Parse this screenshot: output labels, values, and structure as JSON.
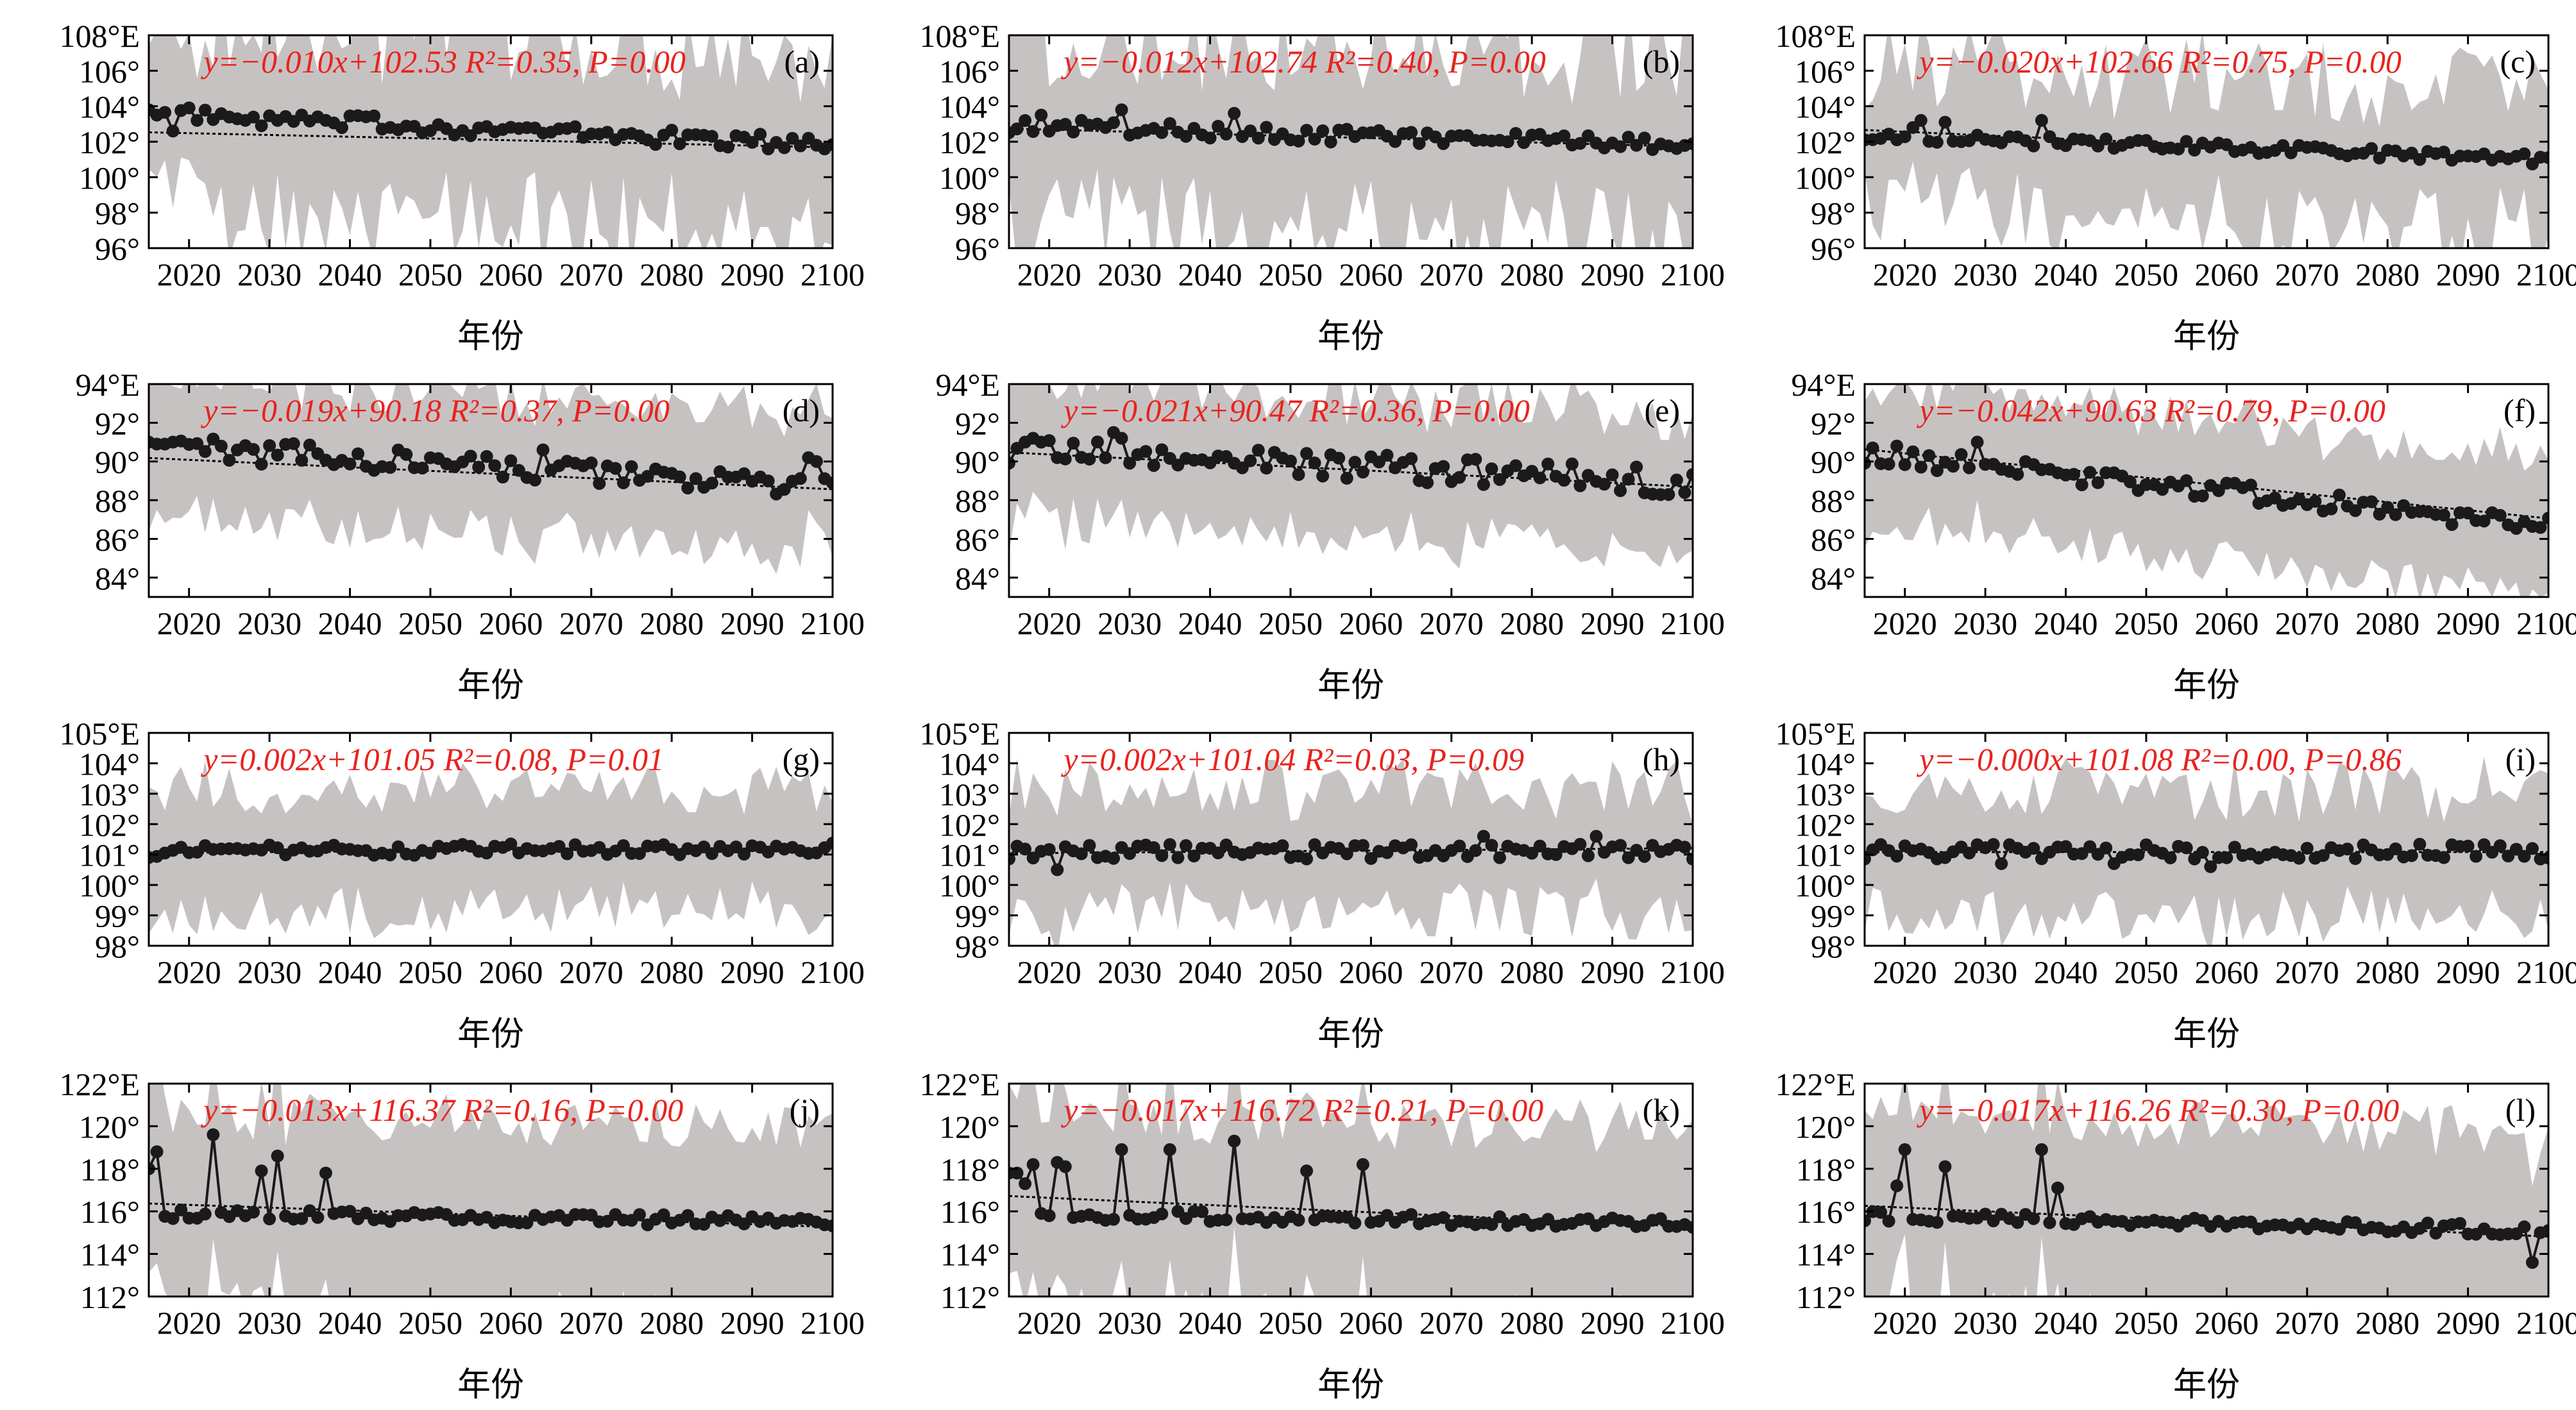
{
  "chart_data": [
    {
      "id": "a",
      "type": "line",
      "panel_label": "(a)",
      "equation": "y=−0.010x+102.53  R²=0.35, P=0.00",
      "xlabel": "年份",
      "ylabel": "",
      "xlim": [
        2015,
        2100
      ],
      "ylim": [
        96,
        108
      ],
      "y_ticks": [
        96,
        98,
        100,
        102,
        104,
        106,
        108
      ],
      "y_tick_labels": [
        "96°",
        "98°",
        "100°",
        "102°",
        "104°",
        "106°",
        "108°E"
      ],
      "x_ticks": [
        2020,
        2030,
        2040,
        2050,
        2060,
        2070,
        2080,
        2090,
        2100
      ],
      "x_tick_labels": [
        "2020",
        "2030",
        "2040",
        "2050",
        "2060",
        "2070",
        "2080",
        "2090",
        "2100"
      ],
      "trend": {
        "slope": -0.01,
        "intercept": 102.53
      },
      "year_start": 2015,
      "year_end": 2100,
      "series": {
        "mean": {
          "start": 103.6,
          "end": 101.8,
          "noise": 0.45
        },
        "band": {
          "width": 3.5,
          "noise": 3.0
        }
      },
      "spikes": [
        [
          2015,
          103.8
        ],
        [
          2016,
          103.5
        ],
        [
          2018,
          102.6
        ],
        [
          2021,
          103.2
        ],
        [
          2027,
          103.2
        ],
        [
          2029,
          102.9
        ],
        [
          2031,
          103.2
        ],
        [
          2037,
          103.2
        ]
      ]
    },
    {
      "id": "b",
      "type": "line",
      "panel_label": "(b)",
      "equation": "y=−0.012x+102.74  R²=0.40, P=0.00",
      "xlabel": "年份",
      "ylabel": "",
      "xlim": [
        2015,
        2100
      ],
      "ylim": [
        96,
        108
      ],
      "y_ticks": [
        96,
        98,
        100,
        102,
        104,
        106,
        108
      ],
      "y_tick_labels": [
        "96°",
        "98°",
        "100°",
        "102°",
        "104°",
        "106°",
        "108°E"
      ],
      "x_ticks": [
        2020,
        2030,
        2040,
        2050,
        2060,
        2070,
        2080,
        2090,
        2100
      ],
      "x_tick_labels": [
        "2020",
        "2030",
        "2040",
        "2050",
        "2060",
        "2070",
        "2080",
        "2090",
        "2100"
      ],
      "trend": {
        "slope": -0.012,
        "intercept": 102.74
      },
      "year_start": 2015,
      "year_end": 2100,
      "series": {
        "mean": {
          "start": 102.9,
          "end": 101.8,
          "noise": 0.4
        },
        "band": {
          "width": 3.5,
          "noise": 3.0
        }
      },
      "spikes": [
        [
          2019,
          103.5
        ],
        [
          2024,
          103.2
        ],
        [
          2029,
          103.8
        ],
        [
          2043,
          103.6
        ],
        [
          2057,
          102.7
        ]
      ]
    },
    {
      "id": "c",
      "type": "line",
      "panel_label": "(c)",
      "equation": "y=−0.020x+102.66  R²=0.75, P=0.00",
      "xlabel": "年份",
      "ylabel": "",
      "xlim": [
        2015,
        2100
      ],
      "ylim": [
        96,
        108
      ],
      "y_ticks": [
        96,
        98,
        100,
        102,
        104,
        106,
        108
      ],
      "y_tick_labels": [
        "96°",
        "98°",
        "100°",
        "102°",
        "104°",
        "106°",
        "108°E"
      ],
      "x_ticks": [
        2020,
        2030,
        2040,
        2050,
        2060,
        2070,
        2080,
        2090,
        2100
      ],
      "x_tick_labels": [
        "2020",
        "2030",
        "2040",
        "2050",
        "2060",
        "2070",
        "2080",
        "2090",
        "2100"
      ],
      "trend": {
        "slope": -0.02,
        "intercept": 102.66
      },
      "year_start": 2015,
      "year_end": 2100,
      "series": {
        "mean": {
          "start": 102.4,
          "end": 101.0,
          "noise": 0.3
        },
        "band": {
          "width": 2.5,
          "noise": 2.5
        }
      },
      "spikes": [
        [
          2021,
          102.8
        ],
        [
          2022,
          103.2
        ],
        [
          2025,
          103.1
        ],
        [
          2037,
          103.2
        ]
      ]
    },
    {
      "id": "d",
      "type": "line",
      "panel_label": "(d)",
      "equation": "y=−0.019x+90.18  R²=0.37, P=0.00",
      "xlabel": "年份",
      "ylabel": "",
      "xlim": [
        2015,
        2100
      ],
      "ylim": [
        83,
        94
      ],
      "y_ticks": [
        84,
        86,
        88,
        90,
        92,
        94
      ],
      "y_tick_labels": [
        "84°",
        "86°",
        "88°",
        "90°",
        "92°",
        "94°E"
      ],
      "x_ticks": [
        2020,
        2030,
        2040,
        2050,
        2060,
        2070,
        2080,
        2090,
        2100
      ],
      "x_tick_labels": [
        "2020",
        "2030",
        "2040",
        "2050",
        "2060",
        "2070",
        "2080",
        "2090",
        "2100"
      ],
      "trend": {
        "slope": -0.019,
        "intercept": 90.18
      },
      "year_start": 2015,
      "year_end": 2100,
      "series": {
        "mean": {
          "start": 90.8,
          "end": 88.6,
          "noise": 0.6
        },
        "band": {
          "width": 3.0,
          "noise": 1.0
        }
      },
      "spikes": [
        [
          2015,
          91.0
        ],
        [
          2016,
          90.9
        ],
        [
          2017,
          90.9
        ],
        [
          2018,
          91.0
        ],
        [
          2064,
          90.6
        ],
        [
          2097,
          90.2
        ],
        [
          2098,
          90.0
        ]
      ]
    },
    {
      "id": "e",
      "type": "line",
      "panel_label": "(e)",
      "equation": "y=−0.021x+90.47  R²=0.36, P=0.00",
      "xlabel": "年份",
      "ylabel": "",
      "xlim": [
        2015,
        2100
      ],
      "ylim": [
        83,
        94
      ],
      "y_ticks": [
        84,
        86,
        88,
        90,
        92,
        94
      ],
      "y_tick_labels": [
        "84°",
        "86°",
        "88°",
        "90°",
        "92°",
        "94°E"
      ],
      "x_ticks": [
        2020,
        2030,
        2040,
        2050,
        2060,
        2070,
        2080,
        2090,
        2100
      ],
      "x_tick_labels": [
        "2020",
        "2030",
        "2040",
        "2050",
        "2060",
        "2070",
        "2080",
        "2090",
        "2100"
      ],
      "trend": {
        "slope": -0.021,
        "intercept": 90.47
      },
      "year_start": 2015,
      "year_end": 2100,
      "series": {
        "mean": {
          "start": 90.6,
          "end": 88.9,
          "noise": 0.7
        },
        "band": {
          "width": 3.0,
          "noise": 1.1
        }
      },
      "spikes": [
        [
          2017,
          91.0
        ],
        [
          2018,
          91.2
        ],
        [
          2019,
          91.0
        ],
        [
          2028,
          91.5
        ],
        [
          2029,
          91.2
        ]
      ]
    },
    {
      "id": "f",
      "type": "line",
      "panel_label": "(f)",
      "equation": "y=−0.042x+90.63  R²=0.79, P=0.00",
      "xlabel": "年份",
      "ylabel": "",
      "xlim": [
        2015,
        2100
      ],
      "ylim": [
        83,
        94
      ],
      "y_ticks": [
        84,
        86,
        88,
        90,
        92,
        94
      ],
      "y_tick_labels": [
        "84°",
        "86°",
        "88°",
        "90°",
        "92°",
        "94°E"
      ],
      "x_ticks": [
        2020,
        2030,
        2040,
        2050,
        2060,
        2070,
        2080,
        2090,
        2100
      ],
      "x_tick_labels": [
        "2020",
        "2030",
        "2040",
        "2050",
        "2060",
        "2070",
        "2080",
        "2090",
        "2100"
      ],
      "trend": {
        "slope": -0.042,
        "intercept": 90.63
      },
      "year_start": 2015,
      "year_end": 2100,
      "series": {
        "mean": {
          "start": 90.4,
          "end": 86.7,
          "noise": 0.5
        },
        "band": {
          "width": 3.0,
          "noise": 1.0
        }
      },
      "spikes": [
        [
          2016,
          90.7
        ],
        [
          2019,
          90.8
        ],
        [
          2029,
          91.0
        ]
      ]
    },
    {
      "id": "g",
      "type": "line",
      "panel_label": "(g)",
      "equation": "y=0.002x+101.05  R²=0.08, P=0.01",
      "xlabel": "年份",
      "ylabel": "",
      "xlim": [
        2015,
        2100
      ],
      "ylim": [
        98,
        105
      ],
      "y_ticks": [
        98,
        99,
        100,
        101,
        102,
        103,
        104,
        105
      ],
      "y_tick_labels": [
        "98°",
        "99°",
        "100°",
        "101°",
        "102°",
        "103°",
        "104°",
        "105°E"
      ],
      "x_ticks": [
        2020,
        2030,
        2040,
        2050,
        2060,
        2070,
        2080,
        2090,
        2100
      ],
      "x_tick_labels": [
        "2020",
        "2030",
        "2040",
        "2050",
        "2060",
        "2070",
        "2080",
        "2090",
        "2100"
      ],
      "trend": {
        "slope": 0.002,
        "intercept": 101.05
      },
      "year_start": 2015,
      "year_end": 2100,
      "series": {
        "mean": {
          "start": 101.1,
          "end": 101.2,
          "noise": 0.2
        },
        "band": {
          "width": 1.5,
          "noise": 0.8
        }
      },
      "spikes": []
    },
    {
      "id": "h",
      "type": "line",
      "panel_label": "(h)",
      "equation": "y=0.002x+101.04  R²=0.03, P=0.09",
      "xlabel": "年份",
      "ylabel": "",
      "xlim": [
        2015,
        2100
      ],
      "ylim": [
        98,
        105
      ],
      "y_ticks": [
        98,
        99,
        100,
        101,
        102,
        103,
        104,
        105
      ],
      "y_tick_labels": [
        "98°",
        "99°",
        "100°",
        "101°",
        "102°",
        "103°",
        "104°",
        "105°E"
      ],
      "x_ticks": [
        2020,
        2030,
        2040,
        2050,
        2060,
        2070,
        2080,
        2090,
        2100
      ],
      "x_tick_labels": [
        "2020",
        "2030",
        "2040",
        "2050",
        "2060",
        "2070",
        "2080",
        "2090",
        "2100"
      ],
      "trend": {
        "slope": 0.002,
        "intercept": 101.04
      },
      "year_start": 2015,
      "year_end": 2100,
      "series": {
        "mean": {
          "start": 101.1,
          "end": 101.1,
          "noise": 0.25
        },
        "band": {
          "width": 1.5,
          "noise": 0.9
        }
      },
      "spikes": [
        [
          2021,
          100.5
        ],
        [
          2074,
          101.6
        ],
        [
          2088,
          101.6
        ]
      ]
    },
    {
      "id": "i",
      "type": "line",
      "panel_label": "(i)",
      "equation": "y=−0.000x+101.08  R²=0.00, P=0.86",
      "xlabel": "年份",
      "ylabel": "",
      "xlim": [
        2015,
        2100
      ],
      "ylim": [
        98,
        105
      ],
      "y_ticks": [
        98,
        99,
        100,
        101,
        102,
        103,
        104,
        105
      ],
      "y_tick_labels": [
        "98°",
        "99°",
        "100°",
        "101°",
        "102°",
        "103°",
        "104°",
        "105°E"
      ],
      "x_ticks": [
        2020,
        2030,
        2040,
        2050,
        2060,
        2070,
        2080,
        2090,
        2100
      ],
      "x_tick_labels": [
        "2020",
        "2030",
        "2040",
        "2050",
        "2060",
        "2070",
        "2080",
        "2090",
        "2100"
      ],
      "trend": {
        "slope": 0.0,
        "intercept": 101.08
      },
      "year_start": 2015,
      "year_end": 2100,
      "series": {
        "mean": {
          "start": 101.1,
          "end": 101.1,
          "noise": 0.25
        },
        "band": {
          "width": 1.5,
          "noise": 0.9
        }
      },
      "spikes": [
        [
          2032,
          100.7
        ],
        [
          2046,
          100.7
        ],
        [
          2058,
          100.6
        ]
      ]
    },
    {
      "id": "j",
      "type": "line",
      "panel_label": "(j)",
      "equation": "y=−0.013x+116.37  R²=0.16, P=0.00",
      "xlabel": "年份",
      "ylabel": "",
      "xlim": [
        2015,
        2100
      ],
      "ylim": [
        112,
        122
      ],
      "y_ticks": [
        112,
        114,
        116,
        118,
        120,
        122
      ],
      "y_tick_labels": [
        "112°",
        "114°",
        "116°",
        "118°",
        "120°",
        "122°E"
      ],
      "x_ticks": [
        2020,
        2030,
        2040,
        2050,
        2060,
        2070,
        2080,
        2090,
        2100
      ],
      "x_tick_labels": [
        "2020",
        "2030",
        "2040",
        "2050",
        "2060",
        "2070",
        "2080",
        "2090",
        "2100"
      ],
      "trend": {
        "slope": -0.013,
        "intercept": 116.37
      },
      "year_start": 2015,
      "year_end": 2100,
      "series": {
        "mean": {
          "start": 115.9,
          "end": 115.5,
          "noise": 0.25
        },
        "band": {
          "width": 3.8,
          "noise": 1.2
        }
      },
      "spikes": [
        [
          2015,
          118.0
        ],
        [
          2016,
          118.8
        ],
        [
          2023,
          119.6
        ],
        [
          2029,
          117.9
        ],
        [
          2031,
          118.6
        ],
        [
          2037,
          117.8
        ]
      ]
    },
    {
      "id": "k",
      "type": "line",
      "panel_label": "(k)",
      "equation": "y=−0.017x+116.72  R²=0.21, P=0.00",
      "xlabel": "年份",
      "ylabel": "",
      "xlim": [
        2015,
        2100
      ],
      "ylim": [
        112,
        122
      ],
      "y_ticks": [
        112,
        114,
        116,
        118,
        120,
        122
      ],
      "y_tick_labels": [
        "112°",
        "114°",
        "116°",
        "118°",
        "120°",
        "122°E"
      ],
      "x_ticks": [
        2020,
        2030,
        2040,
        2050,
        2060,
        2070,
        2080,
        2090,
        2100
      ],
      "x_tick_labels": [
        "2020",
        "2030",
        "2040",
        "2050",
        "2060",
        "2070",
        "2080",
        "2090",
        "2100"
      ],
      "trend": {
        "slope": -0.017,
        "intercept": 116.72
      },
      "year_start": 2015,
      "year_end": 2100,
      "series": {
        "mean": {
          "start": 115.9,
          "end": 115.4,
          "noise": 0.25
        },
        "band": {
          "width": 3.8,
          "noise": 1.2
        }
      },
      "spikes": [
        [
          2015,
          117.8
        ],
        [
          2016,
          117.8
        ],
        [
          2017,
          117.3
        ],
        [
          2018,
          118.2
        ],
        [
          2021,
          118.3
        ],
        [
          2022,
          118.1
        ],
        [
          2029,
          118.9
        ],
        [
          2035,
          118.9
        ],
        [
          2043,
          119.3
        ],
        [
          2052,
          117.9
        ],
        [
          2059,
          118.2
        ]
      ]
    },
    {
      "id": "l",
      "type": "line",
      "panel_label": "(l)",
      "equation": "y=−0.017x+116.26  R²=0.30, P=0.00",
      "xlabel": "年份",
      "ylabel": "",
      "xlim": [
        2015,
        2100
      ],
      "ylim": [
        112,
        122
      ],
      "y_ticks": [
        112,
        114,
        116,
        118,
        120,
        122
      ],
      "y_tick_labels": [
        "112°",
        "114°",
        "116°",
        "118°",
        "120°",
        "122°E"
      ],
      "x_ticks": [
        2020,
        2030,
        2040,
        2050,
        2060,
        2070,
        2080,
        2090,
        2100
      ],
      "x_tick_labels": [
        "2020",
        "2030",
        "2040",
        "2050",
        "2060",
        "2070",
        "2080",
        "2090",
        "2100"
      ],
      "trend": {
        "slope": -0.017,
        "intercept": 116.26
      },
      "year_start": 2015,
      "year_end": 2100,
      "series": {
        "mean": {
          "start": 115.8,
          "end": 115.1,
          "noise": 0.25
        },
        "band": {
          "width": 3.8,
          "noise": 1.2
        }
      },
      "spikes": [
        [
          2019,
          117.2
        ],
        [
          2020,
          118.9
        ],
        [
          2025,
          118.1
        ],
        [
          2037,
          118.9
        ],
        [
          2039,
          117.1
        ],
        [
          2098,
          113.6
        ],
        [
          2099,
          115.0
        ],
        [
          2100,
          115.1
        ]
      ]
    }
  ],
  "colors": {
    "band": "#c7c2c2",
    "line": "#1a1a1a",
    "equation": "#e8231e",
    "axis": "#000000",
    "trend": "#000000"
  },
  "axis_style": {
    "trend_line": "dotted",
    "marker": "filled-circle"
  }
}
